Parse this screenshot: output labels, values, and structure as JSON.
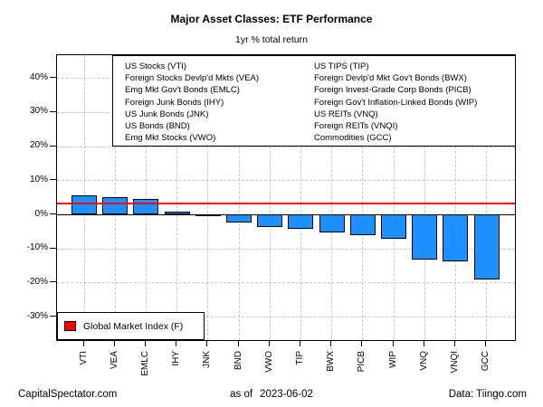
{
  "title": "Major Asset Classes: ETF Performance",
  "subtitle": "1yr % total return",
  "chart_data": {
    "type": "bar",
    "categories": [
      "VTI",
      "VEA",
      "EMLC",
      "IHY",
      "JNK",
      "BND",
      "VWO",
      "TIP",
      "BWX",
      "PICB",
      "WIP",
      "VNQ",
      "VNQI",
      "GCC"
    ],
    "values": [
      5.7,
      5.1,
      4.6,
      0.7,
      -0.6,
      -2.5,
      -3.6,
      -4.3,
      -5.3,
      -6.2,
      -7.2,
      -13.3,
      -13.9,
      -19.0
    ],
    "ytick_labels": [
      "40%",
      "30%",
      "20%",
      "10%",
      "0%",
      "-10%",
      "-20%",
      "-30%"
    ],
    "ytick_values": [
      40,
      30,
      20,
      10,
      0,
      -10,
      -20,
      -30
    ],
    "ylim": [
      -37,
      47
    ],
    "grid": true,
    "bar_color": "#1e90ff",
    "grid_color": "#c6c6c6",
    "benchmark_line": {
      "label": "Global Market Index (F)",
      "value": 3.3,
      "color": "#ff0000"
    },
    "legend_position": "bottom-left"
  },
  "asset_legend": {
    "left_column": [
      "US Stocks (VTI)",
      "Foreign Stocks Devlp'd Mkts (VEA)",
      "Emg Mkt Gov't Bonds (EMLC)",
      "Foreign Junk Bonds (IHY)",
      "US Junk Bonds (JNK)",
      "US Bonds (BND)",
      "Emg Mkt Stocks (VWO)"
    ],
    "right_column": [
      "US TIPS (TIP)",
      "Foreign Devlp'd Mkt Gov't Bonds (BWX)",
      "Foreign Invest-Grade Corp Bonds (PICB)",
      "Foreign Gov't Inflation-Linked Bonds (WIP)",
      "US REITs (VNQ)",
      "Foreign REITs (VNQI)",
      "Commodities (GCC)"
    ]
  },
  "footer": {
    "site": "CapitalSpectator.com",
    "asof_prefix": "as of",
    "asof_date": "2023-06-02",
    "source": "Data: Tiingo.com"
  }
}
